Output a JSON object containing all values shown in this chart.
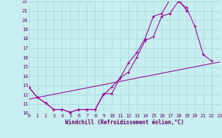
{
  "xlabel": "Windchill (Refroidissement éolien,°C)",
  "bg_color": "#c8eef0",
  "grid_color": "#aadddd",
  "line_color": "#990099",
  "xlim": [
    0,
    23
  ],
  "ylim": [
    10,
    22
  ],
  "yticks": [
    10,
    11,
    12,
    13,
    14,
    15,
    16,
    17,
    18,
    19,
    20,
    21,
    22
  ],
  "xticks": [
    0,
    1,
    2,
    3,
    4,
    5,
    6,
    7,
    8,
    9,
    10,
    11,
    12,
    13,
    14,
    15,
    16,
    17,
    18,
    19,
    20,
    21,
    22,
    23
  ],
  "line1_x": [
    0,
    1,
    2,
    3,
    4,
    5,
    6,
    7,
    8,
    9,
    10,
    11,
    12,
    13,
    14,
    15,
    16,
    17,
    18,
    19,
    20,
    21,
    22
  ],
  "line1_y": [
    12.8,
    11.7,
    11.1,
    10.4,
    10.4,
    10.1,
    10.4,
    10.4,
    10.4,
    12.1,
    12.1,
    13.8,
    14.4,
    16.0,
    17.8,
    18.2,
    20.4,
    20.7,
    22.0,
    21.3,
    19.3,
    16.3,
    15.6
  ],
  "line2_x": [
    0,
    1,
    2,
    3,
    4,
    5,
    6,
    7,
    8,
    9,
    10,
    11,
    12,
    13,
    14,
    15,
    16,
    17,
    18,
    19
  ],
  "line2_y": [
    12.8,
    11.7,
    11.1,
    10.4,
    10.4,
    10.1,
    10.4,
    10.4,
    10.4,
    12.0,
    12.8,
    13.8,
    15.4,
    16.5,
    18.0,
    20.4,
    20.7,
    22.2,
    22.3,
    21.0
  ],
  "line3_x": [
    0,
    23
  ],
  "line3_y": [
    11.5,
    15.5
  ]
}
